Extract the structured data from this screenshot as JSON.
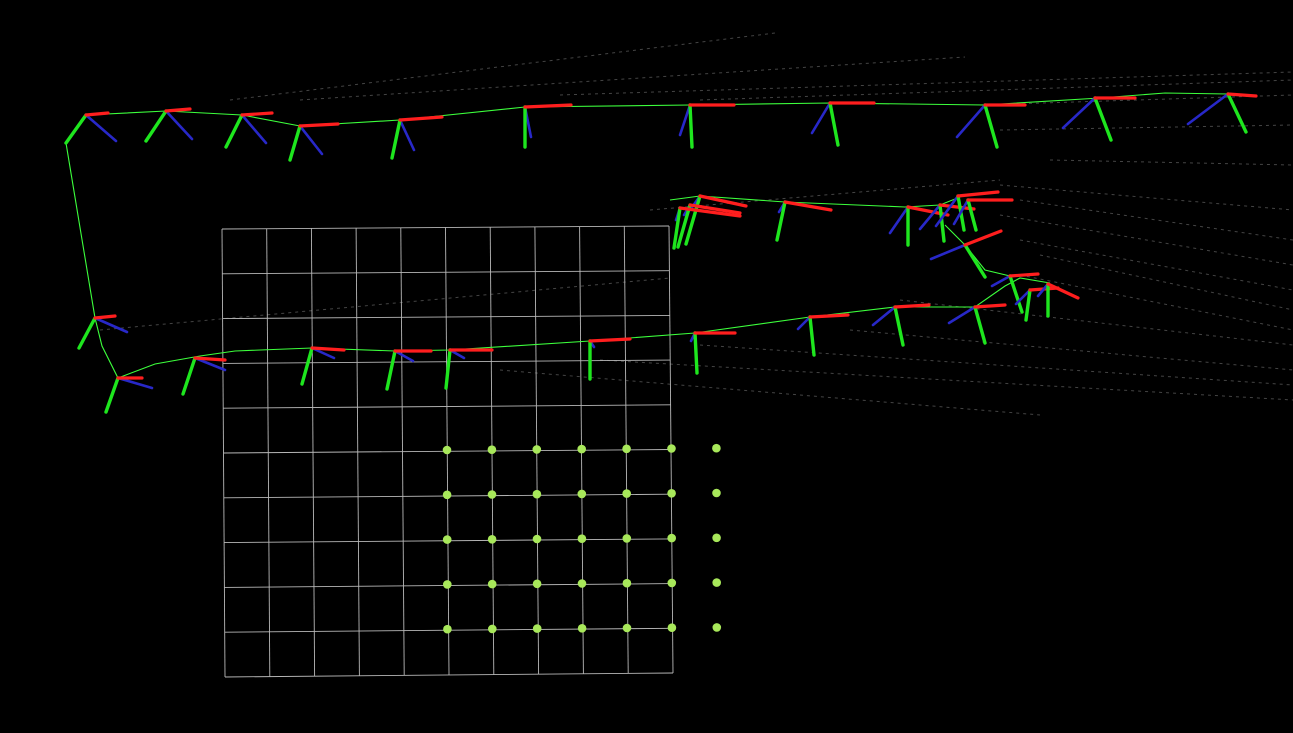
{
  "viewer": {
    "background_color": "#000000",
    "grid": {
      "cells_x": 10,
      "cells_y": 10,
      "color": "#b8b8b8"
    },
    "point_grid": {
      "rows": 5,
      "cols": 7,
      "color": "#a8e85a"
    },
    "trajectory": {
      "path_color": "#3cff3c"
    },
    "axes_colors": {
      "x": "#ff1e1e",
      "y": "#1ee61e",
      "z": "#2828c8"
    },
    "landmark_ray_color": "#444444"
  }
}
